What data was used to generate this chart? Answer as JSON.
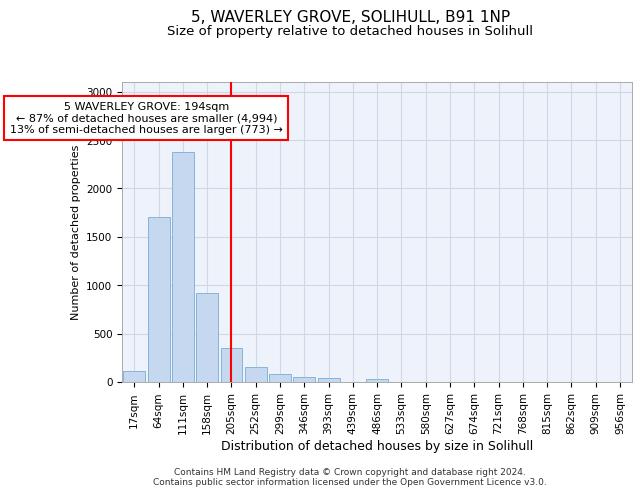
{
  "title_line1": "5, WAVERLEY GROVE, SOLIHULL, B91 1NP",
  "title_line2": "Size of property relative to detached houses in Solihull",
  "xlabel": "Distribution of detached houses by size in Solihull",
  "ylabel": "Number of detached properties",
  "categories": [
    "17sqm",
    "64sqm",
    "111sqm",
    "158sqm",
    "205sqm",
    "252sqm",
    "299sqm",
    "346sqm",
    "393sqm",
    "439sqm",
    "486sqm",
    "533sqm",
    "580sqm",
    "627sqm",
    "674sqm",
    "721sqm",
    "768sqm",
    "815sqm",
    "862sqm",
    "909sqm",
    "956sqm"
  ],
  "values": [
    115,
    1700,
    2380,
    920,
    355,
    155,
    80,
    55,
    38,
    0,
    35,
    0,
    0,
    0,
    0,
    0,
    0,
    0,
    0,
    0,
    0
  ],
  "bar_color": "#c5d8f0",
  "bar_edge_color": "#7aadd4",
  "ref_line_x": 4.0,
  "ref_line_color": "red",
  "annotation_text": "5 WAVERLEY GROVE: 194sqm\n← 87% of detached houses are smaller (4,994)\n13% of semi-detached houses are larger (773) →",
  "annotation_box_color": "red",
  "ylim": [
    0,
    3100
  ],
  "yticks": [
    0,
    500,
    1000,
    1500,
    2000,
    2500,
    3000
  ],
  "grid_color": "#d0d8e8",
  "bg_color": "#eef2fa",
  "footer_line1": "Contains HM Land Registry data © Crown copyright and database right 2024.",
  "footer_line2": "Contains public sector information licensed under the Open Government Licence v3.0.",
  "title1_fontsize": 11,
  "title2_fontsize": 9.5,
  "xlabel_fontsize": 9,
  "ylabel_fontsize": 8,
  "tick_fontsize": 7.5,
  "annotation_fontsize": 8,
  "footer_fontsize": 6.5
}
